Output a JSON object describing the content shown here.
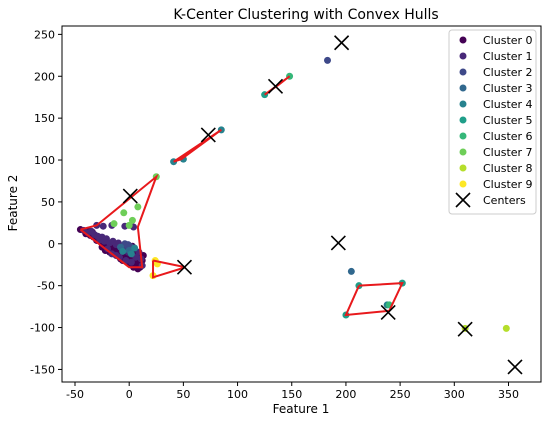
{
  "chart_data": {
    "type": "scatter",
    "title": "K-Center Clustering with Convex Hulls",
    "xlabel": "Feature 1",
    "ylabel": "Feature 2",
    "xlim": [
      -62,
      380
    ],
    "ylim": [
      -165,
      260
    ],
    "xticks": [
      -50,
      0,
      50,
      100,
      150,
      200,
      250,
      300,
      350
    ],
    "yticks": [
      -150,
      -100,
      -50,
      0,
      50,
      100,
      150,
      200,
      250
    ],
    "grid": false,
    "legend_position": "top-right",
    "hull_color": "#e8191c",
    "center_marker_color": "#000000",
    "series": [
      {
        "name": "Cluster 0",
        "color": "#440154",
        "points": [
          [
            -45,
            17
          ],
          [
            -40,
            12
          ],
          [
            -36,
            10
          ],
          [
            -33,
            8
          ],
          [
            -30,
            4
          ],
          [
            -28,
            6
          ],
          [
            -26,
            2
          ],
          [
            -24,
            4
          ],
          [
            -22,
            0
          ],
          [
            -20,
            2
          ],
          [
            -19,
            -2
          ],
          [
            -17,
            -4
          ],
          [
            -16,
            0
          ],
          [
            -15,
            -6
          ],
          [
            -14,
            -3
          ],
          [
            -13,
            -8
          ],
          [
            -12,
            -2
          ],
          [
            -11,
            -10
          ],
          [
            -10,
            -6
          ],
          [
            -9,
            -12
          ],
          [
            -8,
            -8
          ],
          [
            -7,
            -3
          ],
          [
            -6,
            -14
          ],
          [
            -5,
            -10
          ],
          [
            -4,
            -16
          ],
          [
            -3,
            -12
          ],
          [
            -2,
            -6
          ],
          [
            -1,
            -18
          ],
          [
            0,
            -14
          ],
          [
            1,
            -20
          ],
          [
            2,
            -16
          ],
          [
            3,
            -10
          ],
          [
            4,
            -22
          ],
          [
            5,
            -18
          ],
          [
            6,
            -24
          ],
          [
            7,
            -20
          ],
          [
            8,
            -26
          ],
          [
            9,
            -22
          ],
          [
            10,
            -28
          ],
          [
            11,
            -24
          ],
          [
            12,
            -20
          ],
          [
            -18,
            -10
          ],
          [
            -22,
            -8
          ],
          [
            -8,
            -18
          ],
          [
            0,
            -24
          ],
          [
            4,
            -28
          ],
          [
            8,
            -30
          ],
          [
            -3,
            -5
          ],
          [
            3,
            -3
          ],
          [
            -34,
            14
          ],
          [
            -38,
            16
          ],
          [
            -25,
            -4
          ],
          [
            6,
            -12
          ],
          [
            10,
            -16
          ],
          [
            13,
            -14
          ],
          [
            -6,
            -20
          ]
        ]
      },
      {
        "name": "Cluster 1",
        "color": "#482878",
        "points": [
          [
            -42,
            16
          ],
          [
            -38,
            13
          ],
          [
            -35,
            15
          ],
          [
            -32,
            11
          ],
          [
            -29,
            9
          ],
          [
            -27,
            5
          ],
          [
            -25,
            8
          ],
          [
            -23,
            3
          ],
          [
            -21,
            6
          ],
          [
            -18,
            1
          ],
          [
            -15,
            3
          ],
          [
            -12,
            -1
          ],
          [
            -10,
            1
          ],
          [
            -7,
            -5
          ],
          [
            -5,
            -2
          ],
          [
            -2,
            -3
          ],
          [
            1,
            -6
          ],
          [
            -20,
            -6
          ],
          [
            -16,
            -12
          ],
          [
            -12,
            -14
          ],
          [
            -30,
            22
          ],
          [
            -24,
            21
          ],
          [
            -16,
            22
          ],
          [
            -4,
            21
          ],
          [
            4,
            20
          ],
          [
            -9,
            -16
          ],
          [
            -3,
            -20
          ],
          [
            2,
            -22
          ],
          [
            6,
            -16
          ],
          [
            9,
            -10
          ],
          [
            11,
            -18
          ],
          [
            12,
            -26
          ],
          [
            -1,
            -10
          ]
        ]
      },
      {
        "name": "Cluster 2",
        "color": "#3e4989",
        "points": [
          [
            183,
            219
          ],
          [
            -2,
            -2
          ],
          [
            -1,
            -1
          ],
          [
            1,
            -3
          ],
          [
            -4,
            0
          ]
        ]
      },
      {
        "name": "Cluster 3",
        "color": "#31688e",
        "points": [
          [
            205,
            -33
          ],
          [
            -8,
            -4
          ],
          [
            0,
            -8
          ]
        ]
      },
      {
        "name": "Cluster 4",
        "color": "#26828e",
        "points": [
          [
            85,
            136
          ],
          [
            41,
            98
          ],
          [
            50,
            101
          ],
          [
            238,
            -73
          ],
          [
            -6,
            -9
          ],
          [
            2,
            -12
          ],
          [
            5,
            -5
          ]
        ]
      },
      {
        "name": "Cluster 5",
        "color": "#1f9e89",
        "points": [
          [
            252,
            -47
          ],
          [
            212,
            -50
          ],
          [
            125,
            178
          ],
          [
            200,
            -85
          ]
        ]
      },
      {
        "name": "Cluster 6",
        "color": "#35b779",
        "points": [
          [
            148,
            200
          ],
          [
            240,
            -73
          ]
        ]
      },
      {
        "name": "Cluster 7",
        "color": "#6ece58",
        "points": [
          [
            25,
            80
          ],
          [
            8,
            44
          ],
          [
            -5,
            37
          ],
          [
            3,
            28
          ],
          [
            -14,
            24
          ],
          [
            0,
            22
          ]
        ]
      },
      {
        "name": "Cluster 8",
        "color": "#b5de2b",
        "points": [
          [
            348,
            -101
          ],
          [
            310,
            -101
          ]
        ]
      },
      {
        "name": "Cluster 9",
        "color": "#fde725",
        "points": [
          [
            24,
            -20
          ],
          [
            22,
            -38
          ],
          [
            26,
            -24
          ]
        ]
      }
    ],
    "hulls": [
      [
        [
          -45,
          17
        ],
        [
          -30,
          22
        ],
        [
          25,
          80
        ],
        [
          8,
          20
        ],
        [
          12,
          -28
        ],
        [
          0,
          -28
        ],
        [
          -45,
          17
        ]
      ],
      [
        [
          22,
          -20
        ],
        [
          52,
          -28
        ],
        [
          22,
          -40
        ],
        [
          22,
          -20
        ]
      ],
      [
        [
          41,
          98
        ],
        [
          85,
          136
        ],
        [
          48,
          101
        ],
        [
          41,
          98
        ]
      ],
      [
        [
          125,
          178
        ],
        [
          148,
          200
        ],
        [
          138,
          190
        ],
        [
          125,
          178
        ]
      ],
      [
        [
          212,
          -50
        ],
        [
          252,
          -47
        ],
        [
          240,
          -80
        ],
        [
          200,
          -85
        ],
        [
          212,
          -50
        ]
      ]
    ],
    "centers": [
      [
        196,
        240
      ],
      [
        135,
        188
      ],
      [
        73,
        130
      ],
      [
        1,
        57
      ],
      [
        51,
        -28
      ],
      [
        193,
        1
      ],
      [
        239,
        -82
      ],
      [
        310,
        -102
      ],
      [
        356,
        -147
      ]
    ],
    "legend_centers_label": "Centers"
  }
}
